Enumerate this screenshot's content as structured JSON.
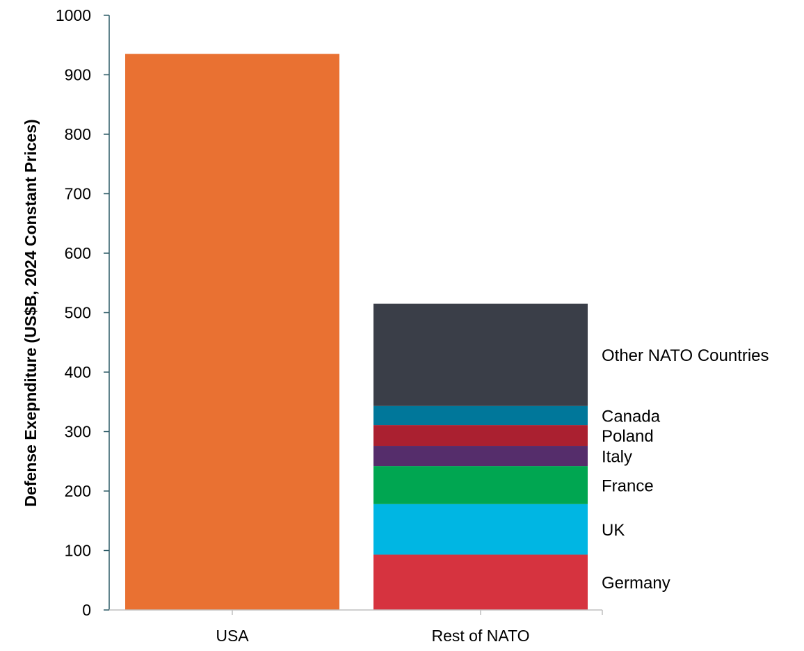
{
  "chart_data": {
    "type": "bar",
    "title": "",
    "xlabel": "",
    "ylabel": "Defense Exepnditure (US$B, 2024 Constant Prices)",
    "ylim": [
      0,
      1000
    ],
    "yticks": [
      0,
      100,
      200,
      300,
      400,
      500,
      600,
      700,
      800,
      900,
      1000
    ],
    "categories": [
      "USA",
      "Rest of NATO"
    ],
    "bars": [
      {
        "category": "USA",
        "segments": [
          {
            "name": "USA",
            "value": 935,
            "color": "#E97132"
          }
        ]
      },
      {
        "category": "Rest of NATO",
        "segments": [
          {
            "name": "Germany",
            "value": 93,
            "color": "#D6333F"
          },
          {
            "name": "UK",
            "value": 85,
            "color": "#00B6E3"
          },
          {
            "name": "France",
            "value": 64,
            "color": "#00A651"
          },
          {
            "name": "Italy",
            "value": 34,
            "color": "#552D6B"
          },
          {
            "name": "Poland",
            "value": 35,
            "color": "#AA2030"
          },
          {
            "name": "Canada",
            "value": 32,
            "color": "#00779A"
          },
          {
            "name": "Other NATO Countries",
            "value": 172,
            "color": "#3A3E48"
          }
        ]
      }
    ]
  }
}
